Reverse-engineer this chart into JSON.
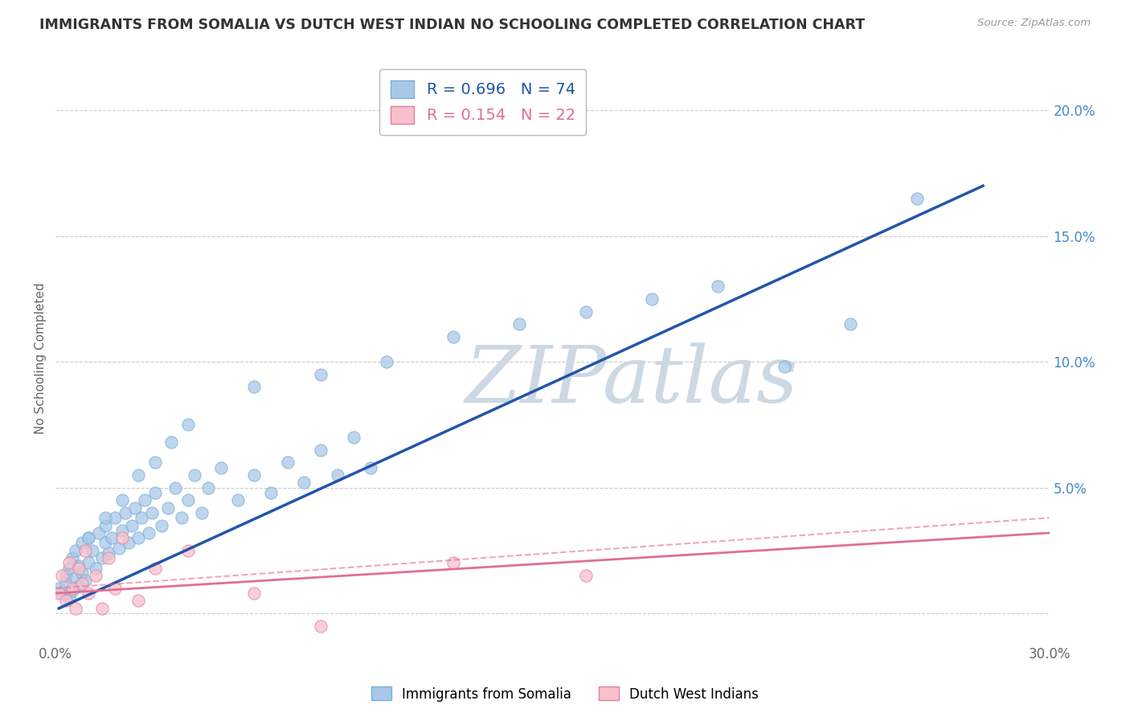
{
  "title": "IMMIGRANTS FROM SOMALIA VS DUTCH WEST INDIAN NO SCHOOLING COMPLETED CORRELATION CHART",
  "source": "Source: ZipAtlas.com",
  "ylabel": "No Schooling Completed",
  "xlim": [
    0.0,
    0.3
  ],
  "ylim": [
    -0.012,
    0.215
  ],
  "y_ticks_right": [
    0.0,
    0.05,
    0.1,
    0.15,
    0.2
  ],
  "y_tick_labels_right": [
    "",
    "5.0%",
    "10.0%",
    "15.0%",
    "20.0%"
  ],
  "legend_blue_label": "R = 0.696   N = 74",
  "legend_pink_label": "R = 0.154   N = 22",
  "legend_bottom_blue": "Immigrants from Somalia",
  "legend_bottom_pink": "Dutch West Indians",
  "blue_color": "#a8c8e8",
  "blue_edge_color": "#7aafd4",
  "blue_line_color": "#2255aa",
  "pink_color": "#f8c0cc",
  "pink_edge_color": "#e080a0",
  "pink_line_color": "#e07090",
  "watermark": "ZIPatlas",
  "watermark_color": "#ccd8e4",
  "background_color": "#ffffff",
  "grid_color": "#cccccc",
  "title_color": "#333333",
  "blue_x": [
    0.001,
    0.002,
    0.003,
    0.003,
    0.004,
    0.004,
    0.005,
    0.005,
    0.006,
    0.006,
    0.007,
    0.007,
    0.008,
    0.008,
    0.009,
    0.01,
    0.01,
    0.011,
    0.012,
    0.013,
    0.014,
    0.015,
    0.015,
    0.016,
    0.017,
    0.018,
    0.019,
    0.02,
    0.021,
    0.022,
    0.023,
    0.024,
    0.025,
    0.026,
    0.027,
    0.028,
    0.029,
    0.03,
    0.032,
    0.034,
    0.036,
    0.038,
    0.04,
    0.042,
    0.044,
    0.046,
    0.05,
    0.055,
    0.06,
    0.065,
    0.07,
    0.075,
    0.08,
    0.085,
    0.09,
    0.095,
    0.01,
    0.015,
    0.02,
    0.025,
    0.03,
    0.035,
    0.04,
    0.06,
    0.08,
    0.1,
    0.12,
    0.14,
    0.16,
    0.18,
    0.2,
    0.22,
    0.24,
    0.26
  ],
  "blue_y": [
    0.01,
    0.008,
    0.012,
    0.015,
    0.006,
    0.018,
    0.022,
    0.009,
    0.014,
    0.025,
    0.011,
    0.019,
    0.016,
    0.028,
    0.013,
    0.02,
    0.03,
    0.025,
    0.018,
    0.032,
    0.022,
    0.028,
    0.035,
    0.024,
    0.03,
    0.038,
    0.026,
    0.033,
    0.04,
    0.028,
    0.035,
    0.042,
    0.03,
    0.038,
    0.045,
    0.032,
    0.04,
    0.048,
    0.035,
    0.042,
    0.05,
    0.038,
    0.045,
    0.055,
    0.04,
    0.05,
    0.058,
    0.045,
    0.055,
    0.048,
    0.06,
    0.052,
    0.065,
    0.055,
    0.07,
    0.058,
    0.03,
    0.038,
    0.045,
    0.055,
    0.06,
    0.068,
    0.075,
    0.09,
    0.095,
    0.1,
    0.11,
    0.115,
    0.12,
    0.125,
    0.13,
    0.098,
    0.115,
    0.165
  ],
  "pink_x": [
    0.001,
    0.002,
    0.003,
    0.004,
    0.005,
    0.006,
    0.007,
    0.008,
    0.009,
    0.01,
    0.012,
    0.014,
    0.016,
    0.018,
    0.02,
    0.025,
    0.03,
    0.04,
    0.06,
    0.08,
    0.12,
    0.16
  ],
  "pink_y": [
    0.008,
    0.015,
    0.005,
    0.02,
    0.01,
    0.002,
    0.018,
    0.012,
    0.025,
    0.008,
    0.015,
    0.002,
    0.022,
    0.01,
    0.03,
    0.005,
    0.018,
    0.025,
    0.008,
    -0.005,
    0.02,
    0.015
  ],
  "blue_trend": [
    0.001,
    0.28,
    0.002,
    0.17
  ],
  "pink_trend_solid": [
    0.0,
    0.3,
    0.008,
    0.032
  ],
  "pink_trend_dashed": [
    0.0,
    0.3,
    0.01,
    0.038
  ]
}
